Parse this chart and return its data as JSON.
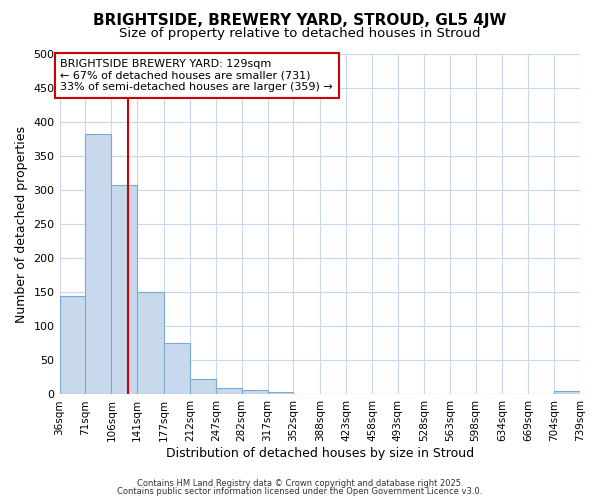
{
  "title_line1": "BRIGHTSIDE, BREWERY YARD, STROUD, GL5 4JW",
  "title_line2": "Size of property relative to detached houses in Stroud",
  "xlabel": "Distribution of detached houses by size in Stroud",
  "ylabel": "Number of detached properties",
  "bar_color": "#c8d8ed",
  "bar_edge_color": "#7aaad0",
  "background_color": "#ffffff",
  "grid_color": "#c8d8f0",
  "vline_color": "#cc0000",
  "vline_x": 129,
  "annotation_text": "BRIGHTSIDE BREWERY YARD: 129sqm\n← 67% of detached houses are smaller (731)\n33% of semi-detached houses are larger (359) →",
  "annotation_box_color": "#ffffff",
  "annotation_box_edge_color": "#cc0000",
  "bins": [
    36,
    71,
    106,
    141,
    177,
    212,
    247,
    282,
    317,
    352,
    388,
    423,
    458,
    493,
    528,
    563,
    598,
    634,
    669,
    704,
    739
  ],
  "counts": [
    145,
    383,
    308,
    150,
    75,
    23,
    9,
    6,
    4,
    0,
    0,
    0,
    0,
    0,
    0,
    0,
    0,
    0,
    0,
    5
  ],
  "ylim": [
    0,
    500
  ],
  "yticks": [
    0,
    50,
    100,
    150,
    200,
    250,
    300,
    350,
    400,
    450,
    500
  ],
  "footnote1": "Contains HM Land Registry data © Crown copyright and database right 2025.",
  "footnote2": "Contains public sector information licensed under the Open Government Licence v3.0."
}
